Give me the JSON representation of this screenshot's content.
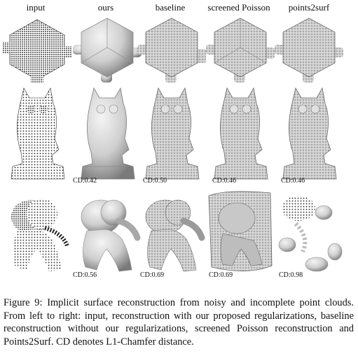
{
  "columns": [
    "input",
    "ours",
    "baseline",
    "screened Poisson",
    "points2surf"
  ],
  "rows": [
    {
      "object": "cube",
      "cd": [
        "",
        "",
        "",
        "",
        ""
      ]
    },
    {
      "object": "owl",
      "cd": [
        "",
        "CD:0.42",
        "CD:0.50",
        "CD:0.46",
        "CD:0.46"
      ]
    },
    {
      "object": "elephant",
      "cd": [
        "",
        "CD:0.56",
        "CD:0.69",
        "CD:0.69",
        "CD:0.98"
      ]
    }
  ],
  "caption": "Figure 9: Implicit surface reconstruction from noisy and incomplete point clouds. From left to right: input, reconstruction with our proposed regularizations, baseline reconstruction without our regularizations, screened Poisson reconstruction and Points2Surf. CD denotes L1-Chamfer distance.",
  "colors": {
    "surface": "#d9d9d9",
    "shadow": "#8a8a8a",
    "ink": "#111111"
  }
}
